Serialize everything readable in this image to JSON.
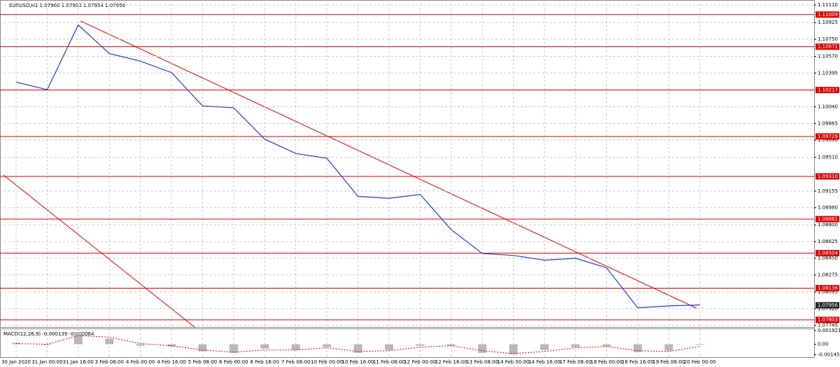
{
  "chart_data": {
    "type": "line",
    "title": "EURUSD,H1  1.07960 1.07963 1.07954 1.07956",
    "categories": [
      "30 Jan 2020",
      "31 Jan 00:00",
      "31 Jan 16:00",
      "3 Feb 08:00",
      "4 Feb 00:00",
      "4 Feb 16:00",
      "5 Feb 08:00",
      "6 Feb 00:00",
      "6 Feb 16:00",
      "7 Feb 08:00",
      "10 Feb 00:00",
      "10 Feb 16:00",
      "11 Feb 08:00",
      "12 Feb 00:00",
      "12 Feb 16:00",
      "13 Feb 08:00",
      "14 Feb 00:00",
      "14 Feb 16:00",
      "17 Feb 08:00",
      "18 Feb 00:00",
      "18 Feb 16:00",
      "19 Feb 08:00",
      "20 Feb 00:00"
    ],
    "series": [
      {
        "color": "#1f3fd0",
        "values": [
          1.103,
          1.1022,
          1.109,
          1.106,
          1.1052,
          1.104,
          1.1005,
          1.1003,
          1.097,
          1.0955,
          1.095,
          1.091,
          1.0908,
          1.0912,
          1.0875,
          1.085,
          1.0848,
          1.0843,
          1.0845,
          1.0835,
          1.0793,
          1.0795,
          1.0796
        ]
      }
    ],
    "ylim": [
      1.0772,
      1.1114
    ],
    "yticks": [
      {
        "value": 1.1111,
        "label": "1.11110"
      },
      {
        "value": 1.10925,
        "label": "1.10925"
      },
      {
        "value": 1.1075,
        "label": "1.10750"
      },
      {
        "value": 1.1057,
        "label": "1.10570"
      },
      {
        "value": 1.10395,
        "label": "1.10395"
      },
      {
        "value": 1.1004,
        "label": "1.10040"
      },
      {
        "value": 1.09865,
        "label": "1.09865"
      },
      {
        "value": 1.0969,
        "label": "1.09690"
      },
      {
        "value": 1.0951,
        "label": "1.09510"
      },
      {
        "value": 1.09155,
        "label": "1.09155"
      },
      {
        "value": 1.0898,
        "label": "1.08980"
      },
      {
        "value": 1.088,
        "label": "1.08800"
      },
      {
        "value": 1.08625,
        "label": "1.08625"
      },
      {
        "value": 1.0845,
        "label": "1.08450"
      },
      {
        "value": 1.08275,
        "label": "1.08275"
      },
      {
        "value": 1.08095,
        "label": "1.08095"
      },
      {
        "value": 1.0792,
        "label": "1.07920"
      },
      {
        "value": 1.07745,
        "label": "1.07745"
      }
    ],
    "grid": true,
    "levels": [
      {
        "value": 1.11009,
        "label": "1.11009"
      },
      {
        "value": 1.10672,
        "label": "1.10672"
      },
      {
        "value": 1.10217,
        "label": "1.10217"
      },
      {
        "value": 1.09729,
        "label": "1.09729"
      },
      {
        "value": 1.0931,
        "label": "1.09310"
      },
      {
        "value": 1.08861,
        "label": "1.08861"
      },
      {
        "value": 1.08504,
        "label": "1.08504"
      },
      {
        "value": 1.08136,
        "label": "1.08136"
      },
      {
        "value": 1.07803,
        "label": "1.07803"
      }
    ],
    "level_color": "#e00000",
    "current_price": {
      "value": 1.07956,
      "label": "1.07956"
    },
    "macd": {
      "title": "MACD(12,26,9) -0.000139 -0.000064",
      "histogram": [
        0.0002,
        -0.0001,
        0.0017,
        0.0008,
        -0.0002,
        -0.0003,
        -0.001,
        -0.0012,
        -0.0006,
        -0.0008,
        -0.0004,
        -0.0012,
        -0.0008,
        -0.0002,
        -0.0002,
        -0.0012,
        -0.0014,
        -0.0008,
        -0.0004,
        -0.0003,
        -0.0011,
        -0.0009,
        -0.0001
      ],
      "signal": [
        0.0001,
        0.0,
        0.0012,
        0.001,
        0.0001,
        -0.0002,
        -0.0008,
        -0.0011,
        -0.0008,
        -0.0008,
        -0.0005,
        -0.001,
        -0.0009,
        -0.0004,
        -0.0002,
        -0.0009,
        -0.0013,
        -0.001,
        -0.0005,
        -0.0003,
        -0.0009,
        -0.001,
        -0.0003
      ],
      "ylim": [
        -0.0018,
        0.0021
      ],
      "yticks": [
        {
          "value": 0.001921,
          "label": "0.001921"
        },
        {
          "value": 0,
          "label": "0.00"
        },
        {
          "value": -0.001455,
          "label": "-0.001455"
        }
      ]
    }
  }
}
